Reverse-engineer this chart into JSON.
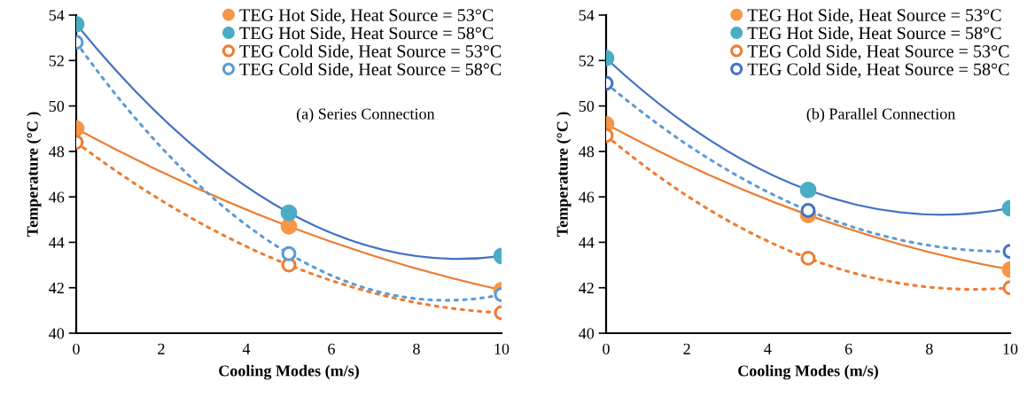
{
  "chart_data": [
    {
      "type": "line",
      "x": [
        0,
        5,
        10
      ],
      "xlabel": "Cooling Modes (m/s)",
      "ylabel": "Temperature (°C )",
      "xlim": [
        0,
        10
      ],
      "xticks": [
        0,
        2,
        4,
        6,
        8,
        10
      ],
      "ylim": [
        40,
        54
      ],
      "yticks": [
        40,
        42,
        44,
        46,
        48,
        50,
        52,
        54
      ],
      "grid": false,
      "legend": "top right",
      "marker": "circle",
      "annotations": [
        "(a) Series Connection"
      ],
      "series": [
        {
          "name": "TEG Hot Side, Heat Source = 53°C",
          "color": "#ed7d31",
          "colors": [
            "#f79646",
            "#f79646",
            "#f79646"
          ],
          "line_style": "solid",
          "values": [
            49.0,
            44.7,
            41.9
          ]
        },
        {
          "name": "TEG Hot Side, Heat Source = 58°C",
          "color": "#4472c4",
          "colors": [
            "#4bacc6",
            "#4bacc6",
            "#4bacc6"
          ],
          "line_style": "solid",
          "values": [
            53.6,
            45.3,
            43.4
          ]
        },
        {
          "name": "TEG Cold Side, Heat Source = 53°C",
          "color": "#f07a2c",
          "colors": [
            "#ed7d31",
            "#ed7d31",
            "#ed7d31"
          ],
          "line_style": "dotted",
          "values": [
            48.4,
            43.0,
            40.9
          ]
        },
        {
          "name": "TEG Cold Side, Heat Source = 58°C",
          "color": "#5b9bd5",
          "colors": [
            "#5b9bd5",
            "#5b9bd5",
            "#5b9bd5"
          ],
          "line_style": "dotted",
          "values": [
            52.8,
            43.5,
            41.7
          ]
        }
      ]
    },
    {
      "type": "line",
      "x": [
        0,
        5,
        10
      ],
      "xlabel": "Cooling Modes (m/s)",
      "ylabel": "Temperature (°C )",
      "xlim": [
        0,
        10
      ],
      "xticks": [
        0,
        2,
        4,
        6,
        8,
        10
      ],
      "ylim": [
        40,
        54
      ],
      "yticks": [
        40,
        42,
        44,
        46,
        48,
        50,
        52,
        54
      ],
      "grid": false,
      "legend": "top right",
      "marker": "circle",
      "annotations": [
        "(b) Parallel Connection"
      ],
      "series": [
        {
          "name": "TEG Hot Side, Heat Source = 53°C",
          "color": "#ed7d31",
          "colors": [
            "#f79646",
            "#f79646",
            "#f79646"
          ],
          "line_style": "solid",
          "values": [
            49.2,
            45.2,
            42.8
          ]
        },
        {
          "name": "TEG Hot Side, Heat Source = 58°C",
          "color": "#4472c4",
          "colors": [
            "#4bacc6",
            "#4bacc6",
            "#4bacc6"
          ],
          "line_style": "solid",
          "values": [
            52.1,
            46.3,
            45.5
          ]
        },
        {
          "name": "TEG Cold Side, Heat Source = 53°C",
          "color": "#f07a2c",
          "colors": [
            "#ed7d31",
            "#ed7d31",
            "#ed7d31"
          ],
          "line_style": "dotted",
          "values": [
            48.7,
            43.3,
            42.0
          ]
        },
        {
          "name": "TEG Cold Side, Heat Source = 58°C",
          "color": "#5b9bd5",
          "colors": [
            "#4472c4",
            "#4472c4",
            "#4472c4"
          ],
          "line_style": "dotted",
          "values": [
            51.0,
            45.4,
            43.6
          ]
        }
      ]
    }
  ]
}
